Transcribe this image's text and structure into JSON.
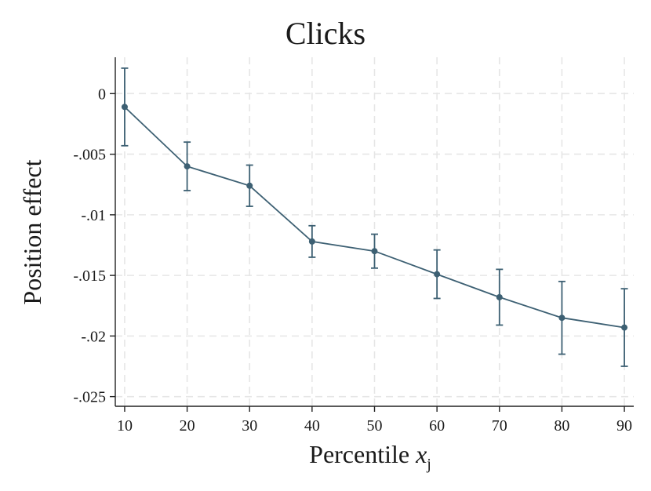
{
  "chart_data": {
    "type": "line",
    "title": "Clicks",
    "xlabel": "Percentile",
    "xlabel_var": "x",
    "xlabel_sub": "j",
    "ylabel": "Position effect",
    "x": [
      10,
      20,
      30,
      40,
      50,
      60,
      70,
      80,
      90
    ],
    "series": [
      {
        "values": [
          -0.0011,
          -0.006,
          -0.0076,
          -0.0122,
          -0.013,
          -0.0149,
          -0.0168,
          -0.0185,
          -0.0193
        ],
        "ci_low": [
          -0.0043,
          -0.008,
          -0.0093,
          -0.0135,
          -0.0144,
          -0.0169,
          -0.0191,
          -0.0215,
          -0.0225
        ],
        "ci_high": [
          0.0021,
          -0.004,
          -0.0059,
          -0.0109,
          -0.0116,
          -0.0129,
          -0.0145,
          -0.0155,
          -0.0161
        ]
      }
    ],
    "xticks": [
      10,
      20,
      30,
      40,
      50,
      60,
      70,
      80,
      90
    ],
    "xtick_labels": [
      "10",
      "20",
      "30",
      "40",
      "50",
      "60",
      "70",
      "80",
      "90"
    ],
    "yticks": [
      0,
      -0.005,
      -0.01,
      -0.015,
      -0.02,
      -0.025
    ],
    "ytick_labels": [
      "0",
      "-.005",
      "-.01",
      "-.015",
      "-.02",
      "-.025"
    ],
    "xlim": [
      8.5,
      91.5
    ],
    "ylim": [
      -0.0258,
      0.003
    ],
    "grid": true,
    "line_color": "#3d6073"
  }
}
